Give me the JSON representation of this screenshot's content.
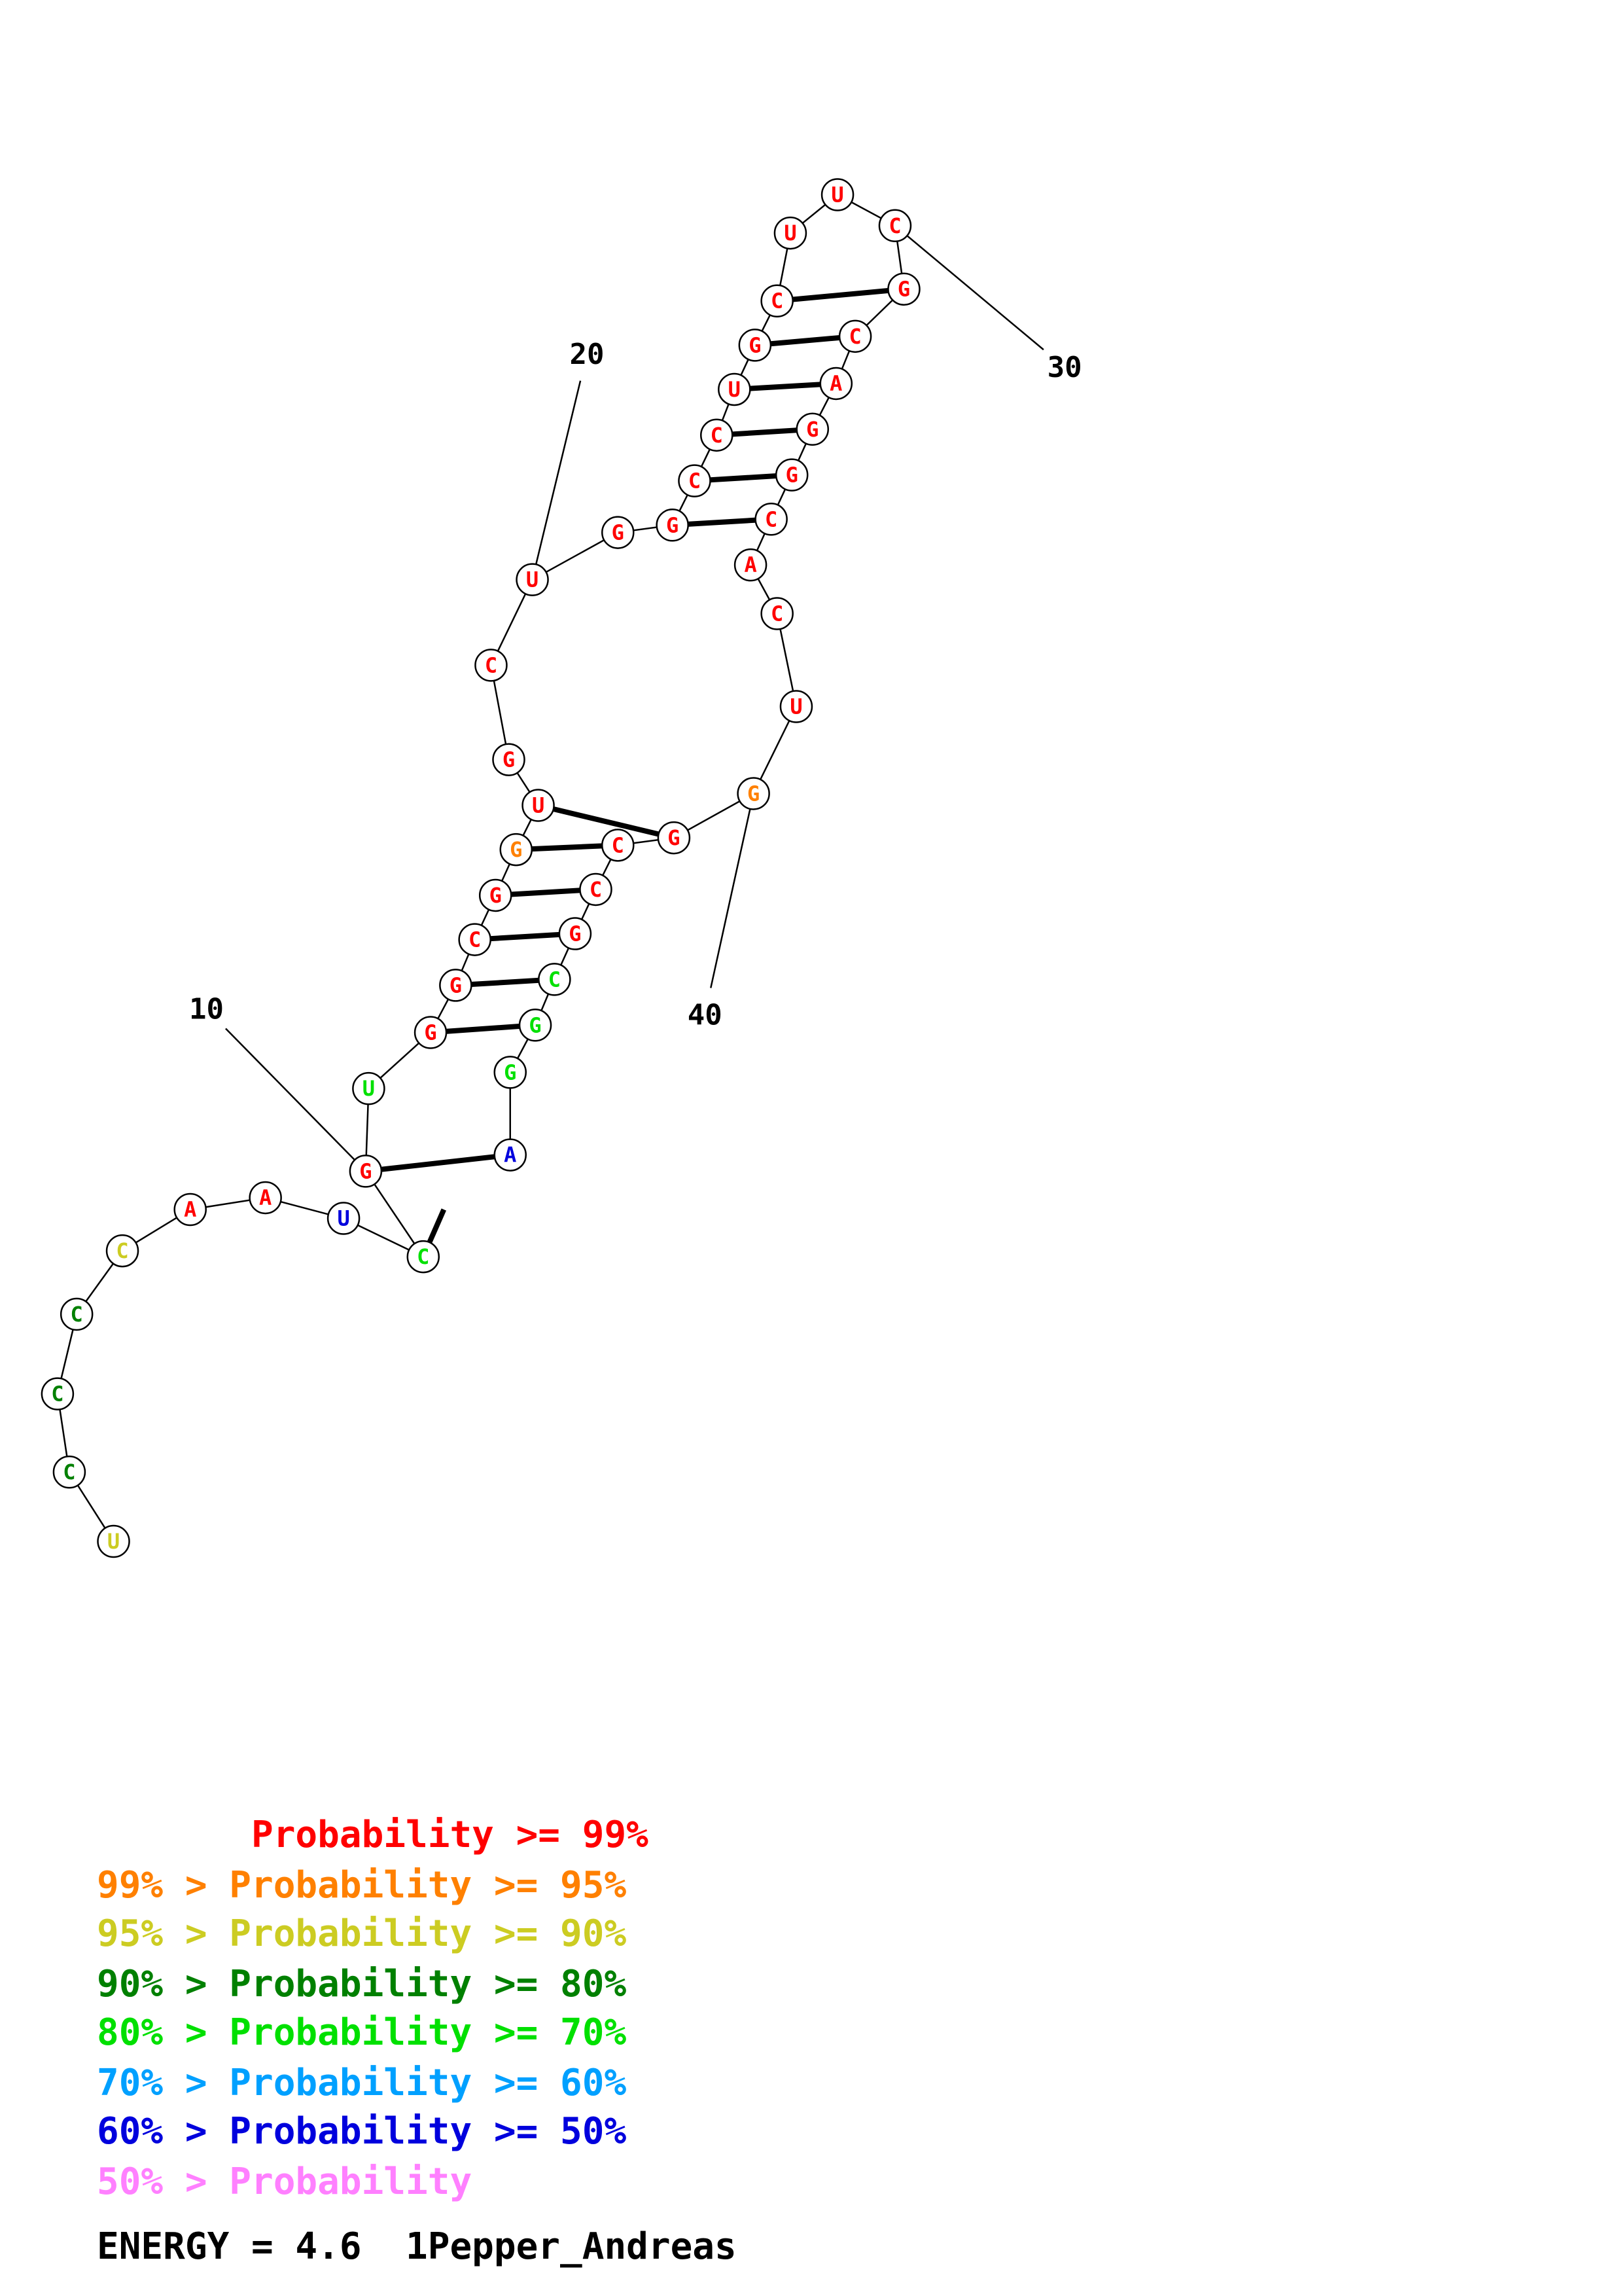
{
  "colors": {
    "p99": "#ff0000",
    "p95": "#ff8000",
    "p90": "#cccc22",
    "p80": "#008000",
    "p70": "#00e000",
    "p60": "#00a0ff",
    "p50": "#0000dd",
    "plow": "#ff80ff"
  },
  "sequence": "UCCCCAAUCGUGGCGGUGCUGGCCUGCUUCGCAGGCACUGGCCGCGGA",
  "probability_class": [
    "p90",
    "p80",
    "p80",
    "p80",
    "p90",
    "p99",
    "p99",
    "p50",
    "p70",
    "p99",
    "p70",
    "p99",
    "p99",
    "p99",
    "p99",
    "p95",
    "p99",
    "p99",
    "p99",
    "p99",
    "p99",
    "p99",
    "p99",
    "p99",
    "p99",
    "p99",
    "p99",
    "p99",
    "p99",
    "p99",
    "p99",
    "p99",
    "p99",
    "p99",
    "p99",
    "p99",
    "p99",
    "p99",
    "p99",
    "p95",
    "p99",
    "p99",
    "p99",
    "p99",
    "p70",
    "p70",
    "p70",
    "p50"
  ],
  "base_pairs": [
    [
      8,
      48
    ],
    [
      9,
      47
    ],
    [
      11,
      45
    ],
    [
      12,
      44
    ],
    [
      13,
      43
    ],
    [
      14,
      42
    ],
    [
      15,
      41
    ],
    [
      16,
      40
    ],
    [
      21,
      35
    ],
    [
      22,
      34
    ],
    [
      23,
      33
    ],
    [
      24,
      32
    ],
    [
      25,
      31
    ],
    [
      26,
      30
    ]
  ],
  "numbering": [
    {
      "index": 10,
      "label": "10"
    },
    {
      "index": 20,
      "label": "20"
    },
    {
      "index": 30,
      "label": "30"
    },
    {
      "index": 40,
      "label": "40"
    }
  ],
  "legend": [
    {
      "text": "       Probability >= 99%",
      "color": "p99"
    },
    {
      "text": "99% > Probability >= 95%",
      "color": "p95"
    },
    {
      "text": "95% > Probability >= 90%",
      "color": "p90"
    },
    {
      "text": "90% > Probability >= 80%",
      "color": "p80"
    },
    {
      "text": "80% > Probability >= 70%",
      "color": "p70"
    },
    {
      "text": "70% > Probability >= 60%",
      "color": "p60"
    },
    {
      "text": "60% > Probability >= 50%",
      "color": "p50"
    },
    {
      "text": "50% > Probability",
      "color": "plow"
    }
  ],
  "footer": {
    "energy": "ENERGY = 4.6  1Pepper_Andreas"
  }
}
